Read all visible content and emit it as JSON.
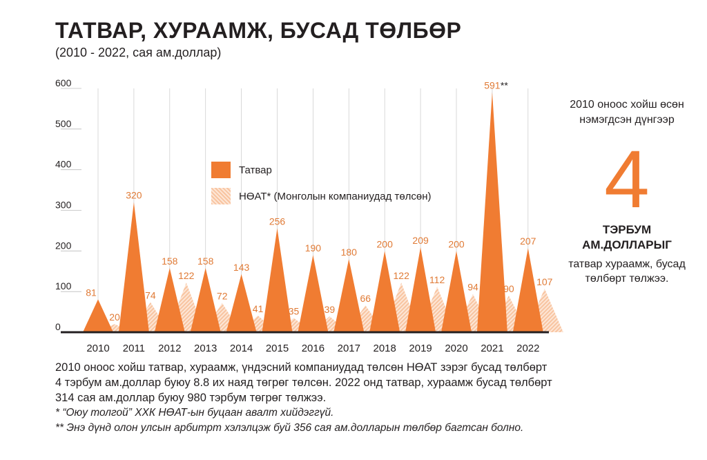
{
  "title": "ТАТВАР, ХУРААМЖ, БУСАД ТӨЛБӨР",
  "subtitle": "(2010 - 2022, сая ам.доллар)",
  "legend": {
    "tax": "Татвар",
    "vat": "НӨАТ* (Монголын компаниудад төлсөн)"
  },
  "side": {
    "note": "2010 оноос хойш өсөн нэмэгдсэн дүнгээр",
    "big_number": "4",
    "bold_line1": "ТЭРБУМ",
    "bold_line2": "АМ.ДОЛЛАРЫГ",
    "desc": "татвар хураамж, бусад төлбөрт төлжээ."
  },
  "footer": {
    "line1": "2010 оноос хойш татвар, хураамж, үндэсний компаниудад төлсөн НӨАТ зэрэг бусад төлбөрт",
    "line2": "4 тэрбум ам.доллар буюу 8.8 их наяд төгрөг төлсөн. 2022 онд татвар, хураамж бусад төлбөрт",
    "line3": "314 сая ам.доллар буюу 980 тэрбум төгрөг төлжээ.",
    "note1": "* “Оюу толгой” ХХК НӨАТ-ын буцаан авалт хийдэггүй.",
    "note2": "** Энэ дүнд олон улсын арбитрт хэлэлцэж буй 356 сая ам.долларын төлбөр багтсан болно."
  },
  "colors": {
    "tax": "#f07c32",
    "vat_light": "#fde6d6",
    "vat_dark": "#f8c4a0",
    "label": "#e07a35"
  },
  "chart_data": {
    "type": "area",
    "categories": [
      "2010",
      "2011",
      "2012",
      "2013",
      "2014",
      "2015",
      "2016",
      "2017",
      "2018",
      "2019",
      "2020",
      "2021",
      "2022"
    ],
    "series": [
      {
        "name": "Татвар",
        "values": [
          81,
          320,
          158,
          158,
          143,
          256,
          190,
          180,
          200,
          209,
          200,
          591,
          207
        ]
      },
      {
        "name": "НӨАТ* (Монголын компаниудад төлсөн)",
        "values": [
          20,
          74,
          122,
          72,
          41,
          35,
          39,
          66,
          122,
          112,
          94,
          90,
          107
        ]
      }
    ],
    "ylim": [
      0,
      600
    ],
    "yticks": [
      0,
      100,
      200,
      300,
      400,
      500,
      600
    ],
    "grid": "vertical",
    "annotation": {
      "category": "2021",
      "text": "**"
    }
  }
}
